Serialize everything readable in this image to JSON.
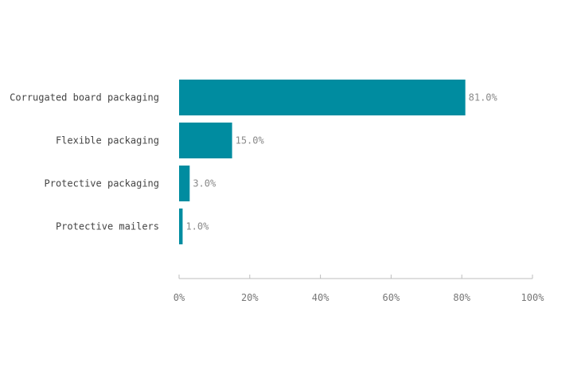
{
  "chart_data": {
    "type": "bar",
    "orientation": "horizontal",
    "categories": [
      "Corrugated board packaging",
      "Flexible packaging",
      "Protective packaging",
      "Protective mailers"
    ],
    "values": [
      81.0,
      15.0,
      3.0,
      1.0
    ],
    "value_labels": [
      "81.0%",
      "15.0%",
      "3.0%",
      "1.0%"
    ],
    "xlim": [
      0,
      100
    ],
    "x_ticks": [
      0,
      20,
      40,
      60,
      80,
      100
    ],
    "x_tick_labels": [
      "0%",
      "20%",
      "40%",
      "60%",
      "80%",
      "100%"
    ],
    "title": "",
    "xlabel": "",
    "ylabel": "",
    "grid": false,
    "legend": "none",
    "bar_color": "#008ca0",
    "axis_color": "#bdbdbd"
  }
}
